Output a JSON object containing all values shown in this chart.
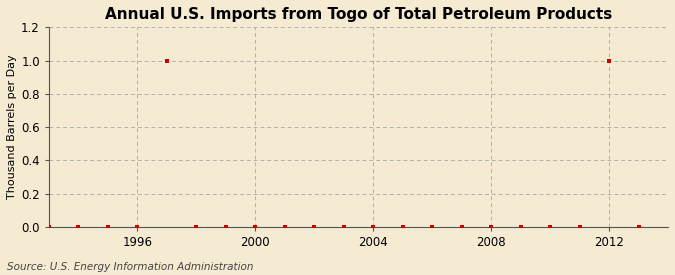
{
  "title": "Annual U.S. Imports from Togo of Total Petroleum Products",
  "ylabel": "Thousand Barrels per Day",
  "source": "Source: U.S. Energy Information Administration",
  "background_color": "#f5ead2",
  "plot_bg_color": "#f5ead2",
  "marker_color": "#cc0000",
  "years": [
    1993,
    1994,
    1995,
    1996,
    1997,
    1998,
    1999,
    2000,
    2001,
    2002,
    2003,
    2004,
    2005,
    2006,
    2007,
    2008,
    2009,
    2010,
    2011,
    2012,
    2013
  ],
  "values": [
    0,
    0,
    0,
    0,
    1,
    0,
    0,
    0,
    0,
    0,
    0,
    0,
    0,
    0,
    0,
    0,
    0,
    0,
    0,
    1,
    0
  ],
  "xlim": [
    1993,
    2014
  ],
  "ylim": [
    0,
    1.2
  ],
  "yticks": [
    0.0,
    0.2,
    0.4,
    0.6,
    0.8,
    1.0,
    1.2
  ],
  "xticks": [
    1996,
    2000,
    2004,
    2008,
    2012
  ],
  "grid_color": "#b0b0b0",
  "title_fontsize": 11,
  "label_fontsize": 8,
  "tick_fontsize": 8.5,
  "source_fontsize": 7.5
}
